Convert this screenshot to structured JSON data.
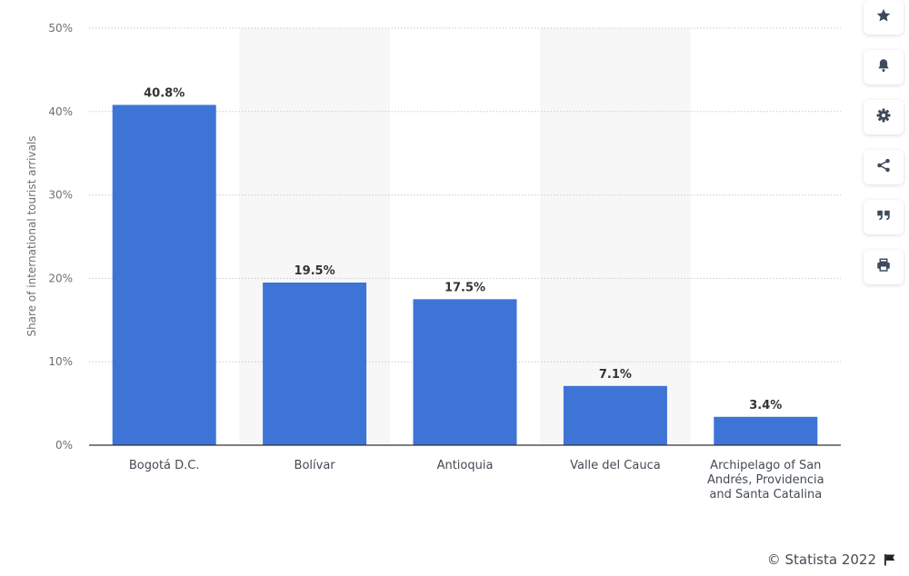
{
  "chart_data": {
    "type": "bar",
    "categories": [
      "Bogotá D.C.",
      "Bolívar",
      "Antioquia",
      "Valle del Cauca",
      "Archipelago of San Andrés, Providencia and Santa Catalina"
    ],
    "category_lines": [
      [
        "Bogotá D.C."
      ],
      [
        "Bolívar"
      ],
      [
        "Antioquia"
      ],
      [
        "Valle del Cauca"
      ],
      [
        "Archipelago of San",
        "Andrés, Providencia",
        "and Santa Catalina"
      ]
    ],
    "values": [
      40.8,
      19.5,
      17.5,
      7.1,
      3.4
    ],
    "data_labels": [
      "40.8%",
      "19.5%",
      "17.5%",
      "7.1%",
      "3.4%"
    ],
    "ylabel": "Share of international tourist arrivals",
    "ylim": [
      0,
      50
    ],
    "yticks": [
      0,
      10,
      20,
      30,
      40,
      50
    ],
    "ytick_labels": [
      "0%",
      "10%",
      "20%",
      "30%",
      "40%",
      "50%"
    ],
    "grid": true,
    "bar_color": "#3d74d6",
    "alternate_band_color": "#f7f7f7"
  },
  "toolbar": {
    "buttons": [
      {
        "icon": "star-icon"
      },
      {
        "icon": "bell-icon"
      },
      {
        "icon": "gear-icon"
      },
      {
        "icon": "share-icon"
      },
      {
        "icon": "quote-icon"
      },
      {
        "icon": "print-icon"
      }
    ]
  },
  "footer": {
    "credit": "© Statista 2022"
  }
}
